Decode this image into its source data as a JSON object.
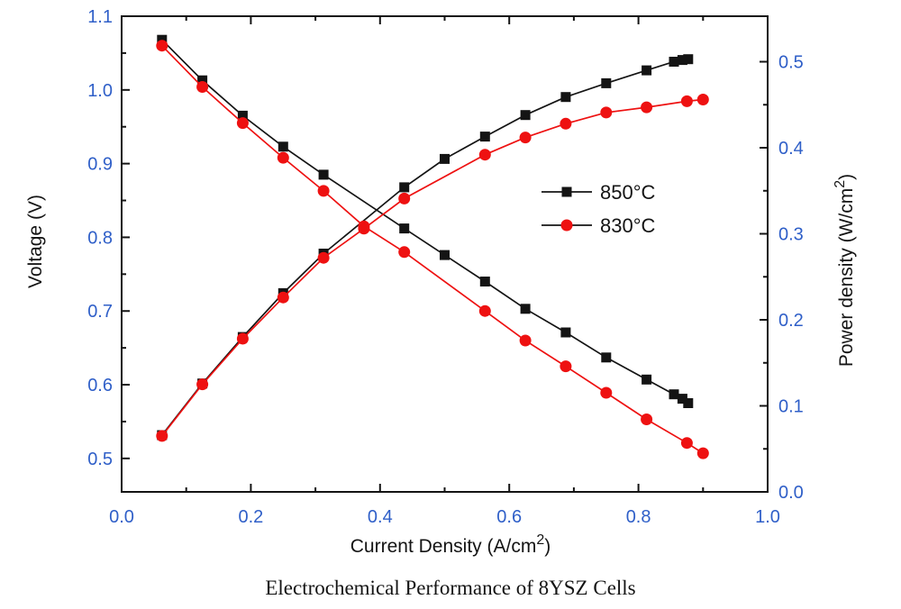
{
  "chart_data": {
    "type": "line",
    "caption": "Electrochemical Performance of 8YSZ Cells",
    "xlabel": {
      "prefix": "Current Density (A/cm",
      "sup": "2",
      "suffix": ")"
    },
    "ylabel_left": "Voltage (V)",
    "ylabel_right": {
      "prefix": "Power density (W/cm",
      "sup": "2",
      "suffix": ")"
    },
    "axes": {
      "x": {
        "min": 0.0,
        "max": 1.0,
        "major_ticks": [
          {
            "v": 0.0,
            "label": "0.0"
          },
          {
            "v": 0.2,
            "label": "0.2"
          },
          {
            "v": 0.4,
            "label": "0.4"
          },
          {
            "v": 0.6,
            "label": "0.6"
          },
          {
            "v": 0.8,
            "label": "0.8"
          },
          {
            "v": 1.0,
            "label": "1.0"
          }
        ],
        "minor_ticks": [
          0.1,
          0.3,
          0.5,
          0.7,
          0.9
        ]
      },
      "voltage": {
        "top": 1.1,
        "bottom": 0.4546,
        "major_ticks": [
          {
            "v": 0.5,
            "label": "0.5"
          },
          {
            "v": 0.6,
            "label": "0.6"
          },
          {
            "v": 0.7,
            "label": "0.7"
          },
          {
            "v": 0.8,
            "label": "0.8"
          },
          {
            "v": 0.9,
            "label": "0.9"
          },
          {
            "v": 1.0,
            "label": "1.0"
          },
          {
            "v": 1.1,
            "label": "1.1"
          }
        ],
        "minor_ticks": [
          0.55,
          0.65,
          0.75,
          0.85,
          0.95,
          1.05
        ]
      },
      "power": {
        "top": 0.5529,
        "bottom": 0.0,
        "major_ticks": [
          {
            "v": 0.0,
            "label": "0.0"
          },
          {
            "v": 0.1,
            "label": "0.1"
          },
          {
            "v": 0.2,
            "label": "0.2"
          },
          {
            "v": 0.3,
            "label": "0.3"
          },
          {
            "v": 0.4,
            "label": "0.4"
          },
          {
            "v": 0.5,
            "label": "0.5"
          }
        ],
        "minor_ticks": [
          0.05,
          0.15,
          0.25,
          0.35,
          0.45
        ]
      }
    },
    "grid": "off",
    "legend_position": "middle-right",
    "colors": {
      "tick_label": "#2f5fc8",
      "axis": "#141414",
      "text": "#141414",
      "series_850": "#141414",
      "series_830": "#ee1111"
    },
    "series": [
      {
        "name": "850°C",
        "color": "#141414",
        "marker": "square",
        "voltage": {
          "x": [
            0.0625,
            0.125,
            0.1875,
            0.25,
            0.3125,
            0.4375,
            0.5,
            0.5625,
            0.625,
            0.6875,
            0.75,
            0.8125,
            0.855,
            0.868,
            0.877
          ],
          "y": [
            1.068,
            1.013,
            0.965,
            0.923,
            0.885,
            0.812,
            0.776,
            0.74,
            0.703,
            0.671,
            0.637,
            0.607,
            0.587,
            0.581,
            0.575
          ]
        },
        "power": {
          "x": [
            0.0625,
            0.125,
            0.1875,
            0.25,
            0.3125,
            0.4375,
            0.5,
            0.5625,
            0.625,
            0.6875,
            0.75,
            0.8125,
            0.855,
            0.868,
            0.877
          ],
          "y": [
            0.066,
            0.126,
            0.18,
            0.231,
            0.277,
            0.354,
            0.387,
            0.413,
            0.438,
            0.459,
            0.475,
            0.49,
            0.5,
            0.502,
            0.503
          ]
        }
      },
      {
        "name": "830°C",
        "color": "#ee1111",
        "marker": "circle",
        "voltage": {
          "x": [
            0.0625,
            0.125,
            0.1875,
            0.25,
            0.3125,
            0.375,
            0.4375,
            0.5625,
            0.625,
            0.6875,
            0.75,
            0.8125,
            0.875,
            0.9
          ],
          "y": [
            1.06,
            1.004,
            0.955,
            0.908,
            0.863,
            0.815,
            0.78,
            0.7,
            0.66,
            0.625,
            0.589,
            0.553,
            0.521,
            0.507
          ]
        },
        "power": {
          "x": [
            0.0625,
            0.125,
            0.1875,
            0.25,
            0.3125,
            0.375,
            0.4375,
            0.5625,
            0.625,
            0.6875,
            0.75,
            0.8125,
            0.875,
            0.9
          ],
          "y": [
            0.065,
            0.125,
            0.178,
            0.226,
            0.272,
            0.306,
            0.341,
            0.392,
            0.412,
            0.428,
            0.441,
            0.447,
            0.454,
            0.456
          ]
        }
      }
    ]
  }
}
